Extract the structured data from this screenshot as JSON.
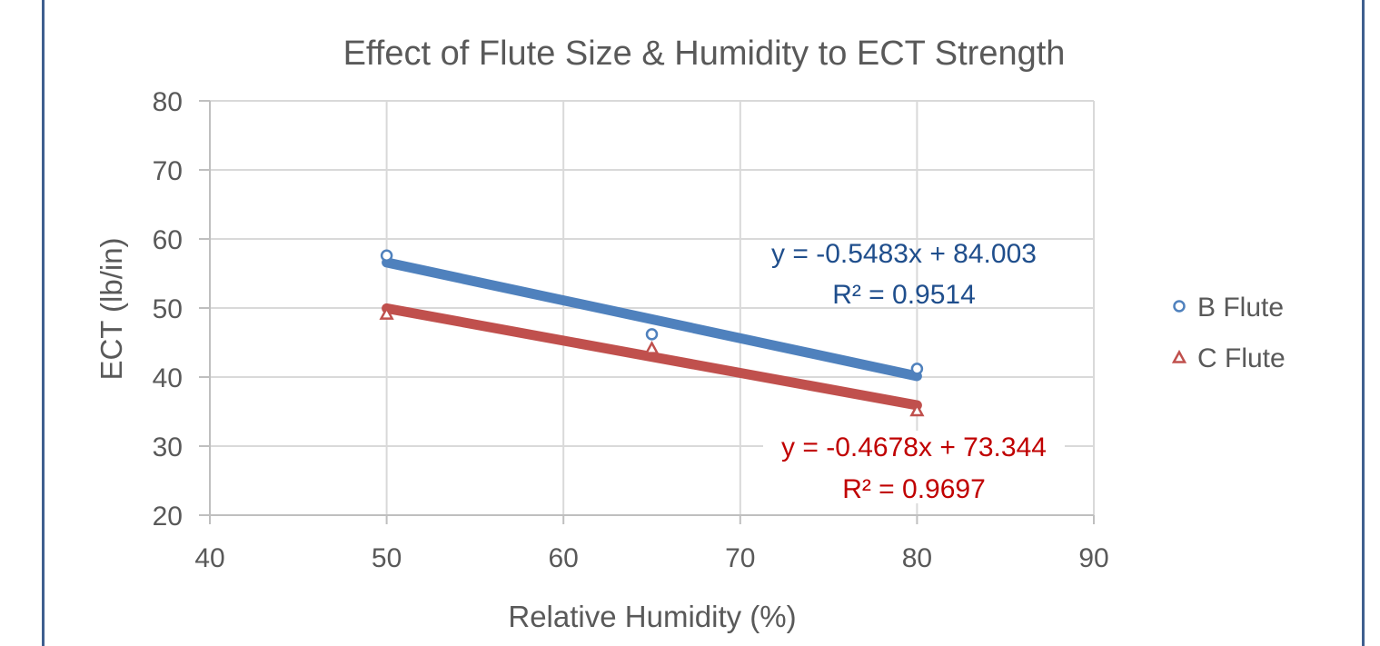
{
  "chart_data": {
    "type": "scatter",
    "title": "Effect of Flute Size & Humidity to ECT Strength",
    "xlabel": "Relative Humidity (%)",
    "ylabel": "ECT  (lb/in)",
    "xlim": [
      40,
      90
    ],
    "ylim": [
      20,
      80
    ],
    "xticks": [
      40,
      50,
      60,
      70,
      80,
      90
    ],
    "yticks": [
      20,
      30,
      40,
      50,
      60,
      70,
      80
    ],
    "x_tick_labels": [
      "40",
      "50",
      "60",
      "70",
      "80",
      "90"
    ],
    "y_tick_labels": [
      "20",
      "30",
      "40",
      "50",
      "60",
      "70",
      "80"
    ],
    "grid": true,
    "legend_position": "right",
    "series": [
      {
        "name": "B Flute",
        "marker": "circle",
        "color": "#4f81bd",
        "trend_color": "#4f81bd",
        "label_color": "#1f4e8c",
        "points": [
          {
            "x": 50,
            "y": 57.6
          },
          {
            "x": 65,
            "y": 46.2
          },
          {
            "x": 80,
            "y": 41.2
          }
        ],
        "trendline": {
          "slope": -0.5483,
          "intercept": 84.003,
          "x_range": [
            50,
            80
          ]
        },
        "equation": "y = -0.5483x + 84.003",
        "r_squared": "R² = 0.9514"
      },
      {
        "name": "C Flute",
        "marker": "triangle",
        "color": "#c0504d",
        "trend_color": "#c0504d",
        "label_color": "#c00000",
        "points": [
          {
            "x": 50,
            "y": 49.2
          },
          {
            "x": 65,
            "y": 44.2
          },
          {
            "x": 80,
            "y": 35.2
          }
        ],
        "trendline": {
          "slope": -0.4678,
          "intercept": 73.344,
          "x_range": [
            50,
            80
          ]
        },
        "equation": "y = -0.4678x + 73.344",
        "r_squared": "R² = 0.9697"
      }
    ]
  }
}
